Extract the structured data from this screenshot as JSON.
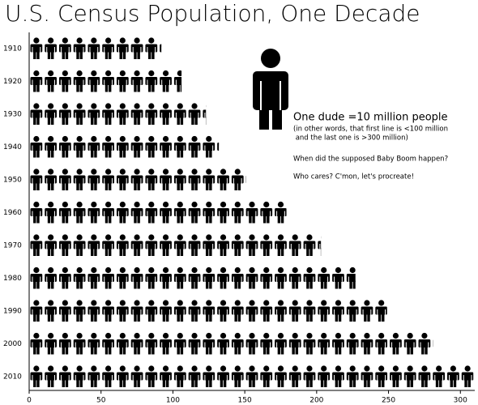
{
  "chart_data": {
    "type": "pictogram",
    "title": "U.S. Census Population, One Decade",
    "annotations": [
      "One dude =10 million people",
      "(in other words, that first line is <100 million",
      " and the last one is >300 million)",
      "When did the supposed Baby Boom happen?",
      "Who cares? C'mon, let's procreate!"
    ],
    "unit_value": 10,
    "categories": [
      "1910",
      "1920",
      "1930",
      "1940",
      "1950",
      "1960",
      "1970",
      "1980",
      "1990",
      "2000",
      "2010"
    ],
    "values": [
      92,
      106,
      123,
      132,
      151,
      179,
      203,
      227,
      249,
      281,
      309
    ],
    "color": "#000000",
    "xlim": [
      0,
      310
    ],
    "xticks": [
      0,
      50,
      100,
      150,
      200,
      250,
      300
    ]
  }
}
